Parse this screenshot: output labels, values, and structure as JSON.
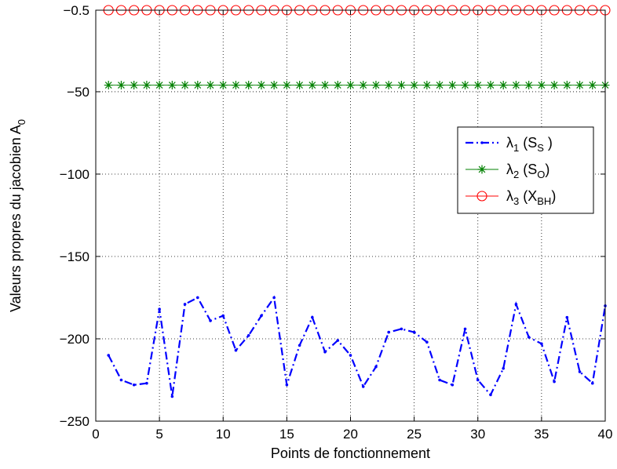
{
  "chart_data": {
    "type": "line",
    "xlabel": "Points de fonctionnement",
    "ylabel": "Valeurs propres du jacobien A",
    "ylabel_sub": "0",
    "xlim": [
      0,
      40
    ],
    "ylim": [
      -250,
      -0.5
    ],
    "xticks": [
      0,
      5,
      10,
      15,
      20,
      25,
      30,
      35,
      40
    ],
    "yticks": [
      -0.5,
      -50,
      -100,
      -150,
      -200,
      -250
    ],
    "ytick_labels": [
      "−0.5",
      "−50",
      "−100",
      "−150",
      "−200",
      "−250"
    ],
    "grid": true,
    "legend_position": "right",
    "x": [
      1,
      2,
      3,
      4,
      5,
      6,
      7,
      8,
      9,
      10,
      11,
      12,
      13,
      14,
      15,
      16,
      17,
      18,
      19,
      20,
      21,
      22,
      23,
      24,
      25,
      26,
      27,
      28,
      29,
      30,
      31,
      32,
      33,
      34,
      35,
      36,
      37,
      38,
      39,
      40
    ],
    "series": [
      {
        "name": "λ1 (SS )",
        "legend_main": "λ",
        "legend_index": "1",
        "legend_text": " (S",
        "legend_sub2": "S",
        "legend_end": " )",
        "color": "#0000ff",
        "style": "dashdot-dot",
        "values": [
          -210,
          -225,
          -228,
          -227,
          -182,
          -235,
          -179,
          -175,
          -189,
          -186,
          -207,
          -198,
          -186,
          -175,
          -228,
          -204,
          -187,
          -208,
          -201,
          -210,
          -229,
          -217,
          -196,
          -194,
          -196,
          -202,
          -225,
          -228,
          -194,
          -225,
          -234,
          -218,
          -179,
          -199,
          -203,
          -226,
          -187,
          -220,
          -227,
          -180
        ]
      },
      {
        "name": "λ2 (SO)",
        "legend_main": "λ",
        "legend_index": "2",
        "legend_text": " (S",
        "legend_sub2": "O",
        "legend_end": ")",
        "color": "#008000",
        "style": "star",
        "values": [
          -46,
          -46,
          -46,
          -46,
          -46,
          -46,
          -46,
          -46,
          -46,
          -46,
          -46,
          -46,
          -46,
          -46,
          -46,
          -46,
          -46,
          -46,
          -46,
          -46,
          -46,
          -46,
          -46,
          -46,
          -46,
          -46,
          -46,
          -46,
          -46,
          -46,
          -46,
          -46,
          -46,
          -46,
          -46,
          -46,
          -46,
          -46,
          -46,
          -46
        ]
      },
      {
        "name": "λ3 (XBH)",
        "legend_main": "λ",
        "legend_index": "3",
        "legend_text": " (X",
        "legend_sub2": "BH",
        "legend_end": ")",
        "color": "#ff0000",
        "style": "circle",
        "values": [
          -0.5,
          -0.5,
          -0.5,
          -0.5,
          -0.5,
          -0.5,
          -0.5,
          -0.5,
          -0.5,
          -0.5,
          -0.5,
          -0.5,
          -0.5,
          -0.5,
          -0.5,
          -0.5,
          -0.5,
          -0.5,
          -0.5,
          -0.5,
          -0.5,
          -0.5,
          -0.5,
          -0.5,
          -0.5,
          -0.5,
          -0.5,
          -0.5,
          -0.5,
          -0.5,
          -0.5,
          -0.5,
          -0.5,
          -0.5,
          -0.5,
          -0.5,
          -0.5,
          -0.5,
          -0.5,
          -0.5
        ]
      }
    ]
  }
}
